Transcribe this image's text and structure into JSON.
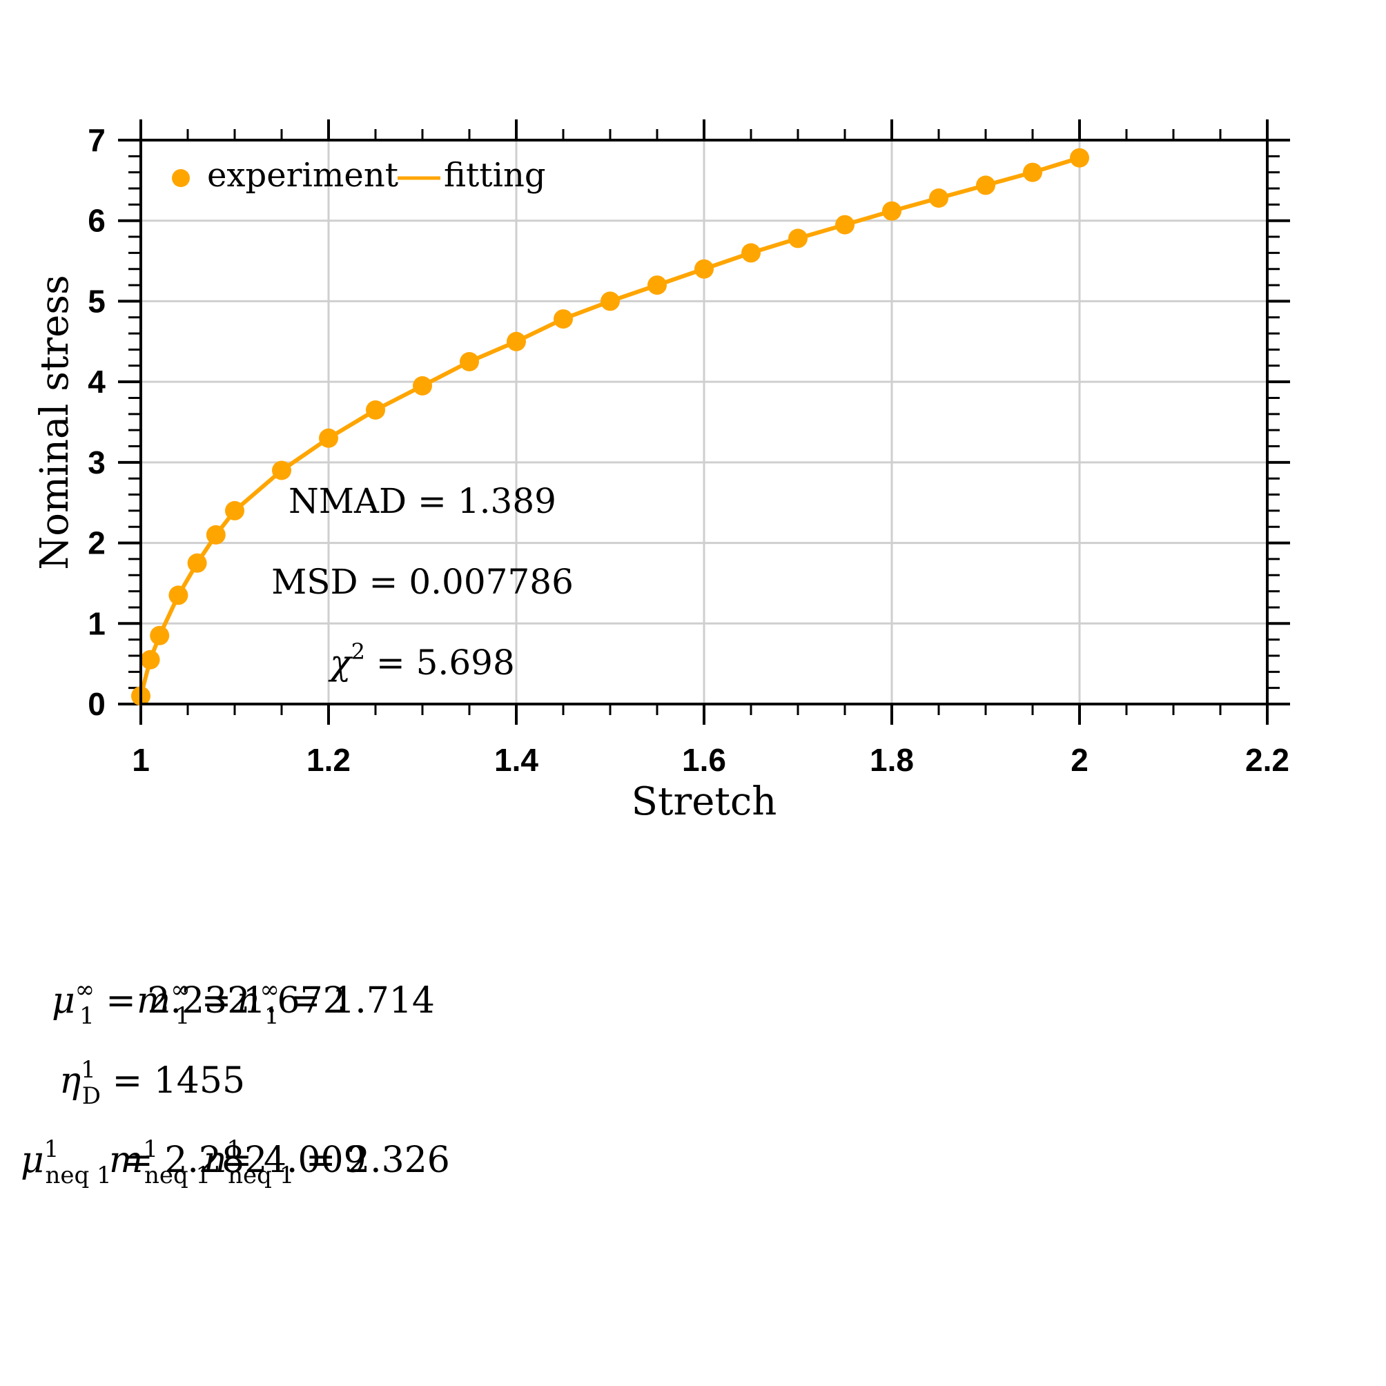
{
  "chart_data": {
    "type": "scatter",
    "xlabel": "Stretch",
    "ylabel": "Nominal stress",
    "xlim": [
      1,
      2.2
    ],
    "ylim": [
      0,
      7
    ],
    "xticks": [
      "1",
      "1.2",
      "1.4",
      "1.6",
      "1.8",
      "2",
      "2.2"
    ],
    "yticks": [
      "0",
      "1",
      "2",
      "3",
      "4",
      "5",
      "6",
      "7"
    ],
    "grid": true,
    "legend_position": "top-left",
    "series": [
      {
        "name": "experiment",
        "style": "markers",
        "color": "#FFA500",
        "x": [
          1.0,
          1.01,
          1.02,
          1.04,
          1.06,
          1.08,
          1.1,
          1.15,
          1.2,
          1.25,
          1.3,
          1.35,
          1.4,
          1.45,
          1.5,
          1.55,
          1.6,
          1.65,
          1.7,
          1.75,
          1.8,
          1.85,
          1.9,
          1.95,
          2.0
        ],
        "y": [
          0.1,
          0.55,
          0.85,
          1.35,
          1.75,
          2.1,
          2.4,
          2.9,
          3.3,
          3.65,
          3.95,
          4.25,
          4.5,
          4.78,
          5.0,
          5.2,
          5.4,
          5.6,
          5.78,
          5.95,
          6.12,
          6.28,
          6.44,
          6.6,
          6.78
        ]
      },
      {
        "name": "fitting",
        "style": "line",
        "color": "#FFA500",
        "x": [
          1.0,
          1.01,
          1.02,
          1.04,
          1.06,
          1.08,
          1.1,
          1.15,
          1.2,
          1.25,
          1.3,
          1.35,
          1.4,
          1.45,
          1.5,
          1.55,
          1.6,
          1.65,
          1.7,
          1.75,
          1.8,
          1.85,
          1.9,
          1.95,
          2.0
        ],
        "y": [
          0.1,
          0.55,
          0.85,
          1.35,
          1.75,
          2.1,
          2.4,
          2.9,
          3.3,
          3.65,
          3.95,
          4.25,
          4.5,
          4.78,
          5.0,
          5.2,
          5.4,
          5.6,
          5.78,
          5.95,
          6.12,
          6.28,
          6.44,
          6.6,
          6.78
        ]
      }
    ],
    "annotations": {
      "nmad_label": "NMAD",
      "nmad_value": "1.389",
      "msd_label": "MSD",
      "msd_value": "0.007786",
      "chi_symbol": "χ",
      "chi_exp": "2",
      "chi_value": "5.698"
    }
  },
  "parameters": {
    "mu_inf": {
      "symbol": "μ",
      "sup": "∞",
      "sub": "1",
      "value": "2.232"
    },
    "m_inf": {
      "symbol": "m",
      "sup": "∞",
      "sub": "1",
      "value": "1.672"
    },
    "n_inf": {
      "symbol": "n",
      "sup": "∞",
      "sub": "1",
      "value": "1.714"
    },
    "eta_d": {
      "symbol": "η",
      "sup": "1",
      "sub": "D",
      "value": "1455"
    },
    "mu_neq": {
      "symbol": "μ",
      "sup": "1",
      "sub": "neq 1",
      "value": "2.282"
    },
    "m_neq": {
      "symbol": "m",
      "sup": "1",
      "sub": "neq 1",
      "value": "4.009"
    },
    "n_neq": {
      "symbol": "n",
      "sup": "1",
      "sub": "neq 1",
      "value": "2.326"
    }
  }
}
